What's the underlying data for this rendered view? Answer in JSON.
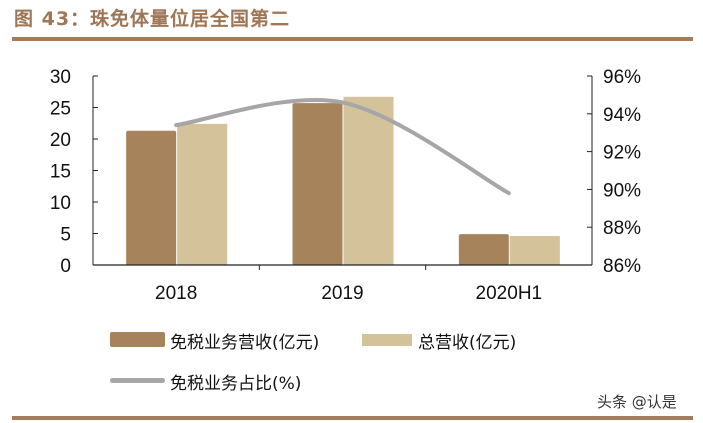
{
  "title": "图 43：珠免体量位居全国第二",
  "watermark": "头条 @认是",
  "chart_data": {
    "type": "bar+line",
    "categories": [
      "2018",
      "2019",
      "2020H1"
    ],
    "series": [
      {
        "name": "免税业务营收(亿元)",
        "type": "bar",
        "axis": "left",
        "color": "#a6835b",
        "values": [
          21.3,
          25.7,
          4.9
        ]
      },
      {
        "name": "总营收(亿元)",
        "type": "bar",
        "axis": "left",
        "color": "#d3c29a",
        "values": [
          22.4,
          26.7,
          4.6
        ]
      },
      {
        "name": "免税业务占比(%)",
        "type": "line",
        "axis": "right",
        "color": "#a6a6a6",
        "values": [
          93.4,
          94.6,
          89.8
        ]
      }
    ],
    "left_axis": {
      "ylim": [
        0,
        30
      ],
      "ticks": [
        "0",
        "5",
        "10",
        "15",
        "20",
        "25",
        "30"
      ]
    },
    "right_axis": {
      "ylim": [
        86,
        96
      ],
      "ticks": [
        "86%",
        "88%",
        "90%",
        "92%",
        "94%",
        "96%"
      ]
    },
    "grid": false,
    "legend_position": "bottom"
  }
}
